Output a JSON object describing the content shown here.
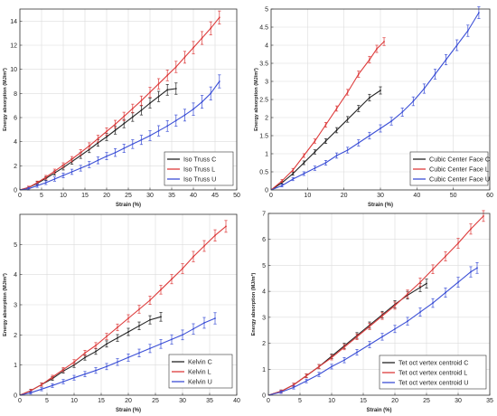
{
  "chart_data": [
    {
      "type": "line",
      "xlabel": "Strain (%)",
      "ylabel": "Energy absorption (MJ/m³)",
      "xlim": [
        0,
        50
      ],
      "ylim": [
        0,
        15
      ],
      "xticks": [
        0,
        5,
        10,
        15,
        20,
        25,
        30,
        35,
        40,
        45,
        50
      ],
      "yticks": [
        0,
        2,
        4,
        6,
        8,
        10,
        12,
        14
      ],
      "grid": true,
      "legend_position": "lower-right",
      "series": [
        {
          "name": "Iso Truss C",
          "color": "#222222",
          "x": [
            0,
            2,
            4,
            6,
            8,
            10,
            12,
            14,
            16,
            18,
            20,
            22,
            24,
            26,
            28,
            30,
            32,
            34,
            36
          ],
          "y": [
            0,
            0.2,
            0.55,
            0.95,
            1.4,
            1.85,
            2.35,
            2.85,
            3.35,
            3.9,
            4.4,
            4.95,
            5.5,
            6.05,
            6.6,
            7.2,
            7.75,
            8.3,
            8.4
          ]
        },
        {
          "name": "Iso Truss L",
          "color": "#dd3b3b",
          "x": [
            0,
            2,
            4,
            6,
            8,
            10,
            12,
            14,
            16,
            18,
            20,
            22,
            24,
            26,
            28,
            30,
            32,
            34,
            36,
            38,
            40,
            42,
            44,
            46
          ],
          "y": [
            0,
            0.2,
            0.6,
            1.05,
            1.55,
            2.05,
            2.55,
            3.1,
            3.65,
            4.25,
            4.85,
            5.45,
            6.1,
            6.75,
            7.4,
            8.1,
            8.8,
            9.5,
            10.2,
            11.0,
            11.8,
            12.6,
            13.4,
            14.3
          ]
        },
        {
          "name": "Iso Truss U",
          "color": "#3b4fd6",
          "x": [
            0,
            2,
            4,
            6,
            8,
            10,
            12,
            14,
            16,
            18,
            20,
            22,
            24,
            26,
            28,
            30,
            32,
            34,
            36,
            38,
            40,
            42,
            44,
            46
          ],
          "y": [
            0,
            0.1,
            0.35,
            0.6,
            0.9,
            1.2,
            1.5,
            1.8,
            2.1,
            2.45,
            2.8,
            3.1,
            3.45,
            3.8,
            4.15,
            4.5,
            4.9,
            5.3,
            5.75,
            6.2,
            6.7,
            7.3,
            8.0,
            9.0
          ]
        }
      ]
    },
    {
      "type": "line",
      "xlabel": "Strain (%)",
      "ylabel": "Energy absorption (MJ/m³)",
      "xlim": [
        0,
        60
      ],
      "ylim": [
        0,
        5
      ],
      "xticks": [
        0,
        10,
        20,
        30,
        40,
        50,
        60
      ],
      "yticks": [
        0,
        0.5,
        1,
        1.5,
        2,
        2.5,
        3,
        3.5,
        4,
        4.5,
        5
      ],
      "grid": true,
      "legend_position": "lower-right",
      "series": [
        {
          "name": "Cubic Center Face C",
          "color": "#222222",
          "x": [
            0,
            3,
            6,
            9,
            12,
            15,
            18,
            21,
            24,
            27,
            30
          ],
          "y": [
            0,
            0.2,
            0.45,
            0.75,
            1.05,
            1.35,
            1.65,
            1.95,
            2.25,
            2.55,
            2.75
          ]
        },
        {
          "name": "Cubic Center Face L",
          "color": "#dd3b3b",
          "x": [
            0,
            3,
            6,
            9,
            12,
            15,
            18,
            21,
            24,
            27,
            29,
            31
          ],
          "y": [
            0,
            0.25,
            0.55,
            0.95,
            1.35,
            1.8,
            2.25,
            2.7,
            3.2,
            3.6,
            3.9,
            4.1
          ]
        },
        {
          "name": "Cubic Center Face U",
          "color": "#3b4fd6",
          "x": [
            0,
            3,
            6,
            9,
            12,
            15,
            18,
            21,
            24,
            27,
            30,
            33,
            36,
            39,
            42,
            45,
            48,
            51,
            54,
            57
          ],
          "y": [
            0,
            0.12,
            0.3,
            0.45,
            0.6,
            0.75,
            0.95,
            1.1,
            1.3,
            1.5,
            1.7,
            1.9,
            2.15,
            2.45,
            2.8,
            3.2,
            3.6,
            4.0,
            4.4,
            4.9
          ]
        }
      ]
    },
    {
      "type": "line",
      "xlabel": "Strain (%)",
      "ylabel": "Energy absorption (MJ/m³)",
      "xlim": [
        0,
        40
      ],
      "ylim": [
        0,
        6
      ],
      "xticks": [
        0,
        5,
        10,
        15,
        20,
        25,
        30,
        35,
        40
      ],
      "yticks": [
        0,
        1,
        2,
        3,
        4,
        5
      ],
      "grid": true,
      "legend_position": "lower-right",
      "series": [
        {
          "name": "Kelvin C",
          "color": "#222222",
          "x": [
            0,
            2,
            4,
            6,
            8,
            10,
            12,
            14,
            16,
            18,
            20,
            22,
            24,
            26
          ],
          "y": [
            0,
            0.15,
            0.35,
            0.55,
            0.8,
            1.0,
            1.25,
            1.45,
            1.7,
            1.9,
            2.1,
            2.3,
            2.5,
            2.6
          ]
        },
        {
          "name": "Kelvin L",
          "color": "#dd3b3b",
          "x": [
            0,
            2,
            4,
            6,
            8,
            10,
            12,
            14,
            16,
            18,
            20,
            22,
            24,
            26,
            28,
            30,
            32,
            34,
            36,
            38
          ],
          "y": [
            0,
            0.15,
            0.35,
            0.6,
            0.85,
            1.1,
            1.4,
            1.65,
            1.95,
            2.25,
            2.55,
            2.85,
            3.15,
            3.5,
            3.85,
            4.2,
            4.6,
            4.95,
            5.3,
            5.6
          ]
        },
        {
          "name": "Kelvin U",
          "color": "#3b4fd6",
          "x": [
            0,
            2,
            4,
            6,
            8,
            10,
            12,
            14,
            16,
            18,
            20,
            22,
            24,
            26,
            28,
            30,
            32,
            34,
            36
          ],
          "y": [
            0,
            0.08,
            0.2,
            0.32,
            0.45,
            0.58,
            0.7,
            0.82,
            0.95,
            1.1,
            1.25,
            1.4,
            1.55,
            1.7,
            1.85,
            2.0,
            2.2,
            2.4,
            2.55
          ]
        }
      ]
    },
    {
      "type": "line",
      "xlabel": "Strain (%)",
      "ylabel": "Energy absorption (MJ/m³)",
      "xlim": [
        0,
        35
      ],
      "ylim": [
        0,
        7
      ],
      "xticks": [
        0,
        5,
        10,
        15,
        20,
        25,
        30,
        35
      ],
      "yticks": [
        0,
        1,
        2,
        3,
        4,
        5,
        6,
        7
      ],
      "grid": true,
      "legend_position": "lower-right",
      "series": [
        {
          "name": "Tet oct vertex centroid C",
          "color": "#222222",
          "x": [
            0,
            2,
            4,
            6,
            8,
            10,
            12,
            14,
            16,
            18,
            20,
            22,
            24,
            25
          ],
          "y": [
            0,
            0.15,
            0.4,
            0.75,
            1.1,
            1.5,
            1.9,
            2.3,
            2.7,
            3.1,
            3.5,
            3.85,
            4.15,
            4.3
          ]
        },
        {
          "name": "Tet oct vertex centroid L",
          "color": "#dd3b3b",
          "x": [
            0,
            2,
            4,
            6,
            8,
            10,
            12,
            14,
            16,
            18,
            20,
            22,
            24,
            26,
            28,
            30,
            32,
            34
          ],
          "y": [
            0,
            0.15,
            0.4,
            0.75,
            1.1,
            1.45,
            1.85,
            2.25,
            2.65,
            3.05,
            3.45,
            3.9,
            4.35,
            4.85,
            5.35,
            5.85,
            6.4,
            6.9
          ]
        },
        {
          "name": "Tet oct vertex centroid U",
          "color": "#3b4fd6",
          "x": [
            0,
            2,
            4,
            6,
            8,
            10,
            12,
            14,
            16,
            18,
            20,
            22,
            24,
            26,
            28,
            30,
            32,
            33
          ],
          "y": [
            0,
            0.12,
            0.3,
            0.55,
            0.8,
            1.1,
            1.35,
            1.65,
            1.95,
            2.25,
            2.55,
            2.85,
            3.2,
            3.55,
            3.95,
            4.35,
            4.75,
            4.9
          ]
        }
      ]
    }
  ]
}
